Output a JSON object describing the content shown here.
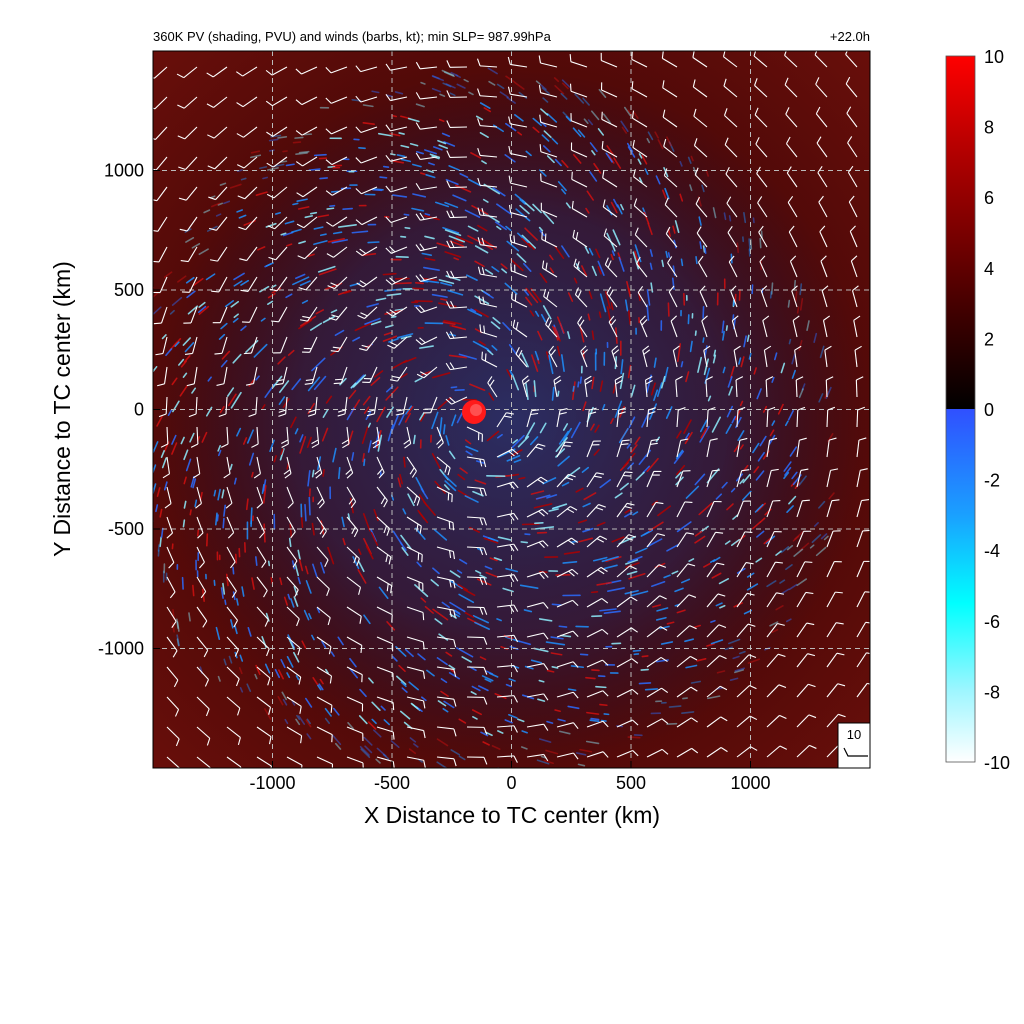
{
  "header": {
    "title": "360K PV (shading, PVU) and winds (barbs, kt); min SLP= 987.99hPa",
    "time": "+22.0h"
  },
  "chart_data": {
    "type": "heatmap",
    "title": "360K PV (shading, PVU) and winds (barbs, kt); min SLP= 987.99hPa",
    "valid_time_label": "+22.0h",
    "xlabel": "X Distance to TC center (km)",
    "ylabel": "Y Distance to TC center (km)",
    "xlim": [
      -1500,
      1500
    ],
    "ylim": [
      -1500,
      1500
    ],
    "x_ticks": [
      -1000,
      -500,
      0,
      500,
      1000
    ],
    "y_ticks": [
      -1000,
      -500,
      0,
      500,
      1000
    ],
    "x_tick_labels": [
      "-1000",
      "-500",
      "0",
      "500",
      "1000"
    ],
    "y_tick_labels": [
      "-1000",
      "-500",
      "0",
      "500",
      "1000"
    ],
    "grid": true,
    "grid_style": "dashed",
    "colorbar": {
      "range": [
        -10,
        10
      ],
      "ticks": [
        10,
        8,
        6,
        4,
        2,
        0,
        -2,
        -4,
        -6,
        -8,
        -10
      ],
      "tick_labels": [
        "10",
        "8",
        "6",
        "4",
        "2",
        "0",
        "-2",
        "-4",
        "-6",
        "-8",
        "-10"
      ],
      "colors_positive": [
        "#000000",
        "#3a0000",
        "#6e0000",
        "#a00000",
        "#d00000",
        "#ff0000"
      ],
      "colors_negative": [
        "#3050ff",
        "#1aa0ff",
        "#00ffff",
        "#9ff6ff",
        "#ffffff"
      ]
    },
    "field_description_colors": {
      "background": "#5a0a08",
      "positive_streak": "#d01010",
      "negative_streak": "#1e90ff",
      "strong_negative": "#8ff0ff",
      "core": "#ff1a1a"
    },
    "wind_barbs": {
      "circulation": "cyclonic",
      "reference_label": "10",
      "color": "#ffffff"
    }
  }
}
